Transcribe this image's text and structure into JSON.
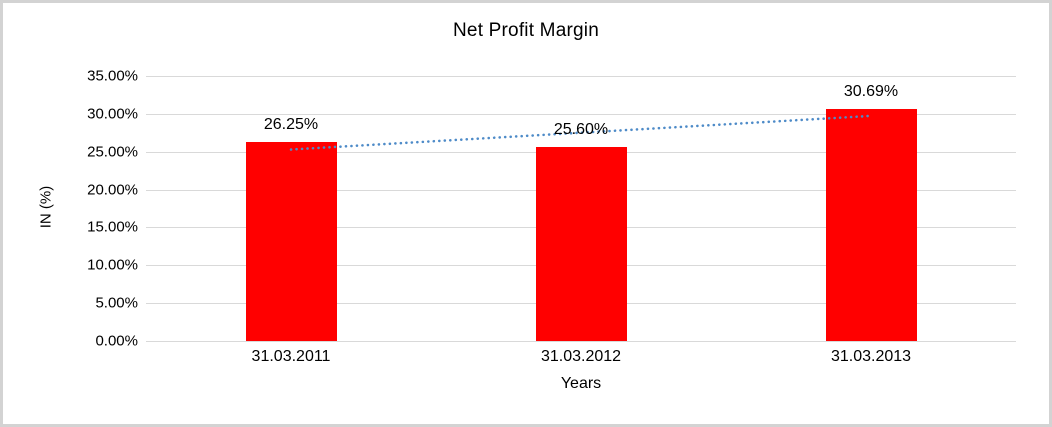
{
  "chart_data": {
    "type": "bar",
    "title": "Net Profit Margin",
    "xlabel": "Years",
    "ylabel": "IN (%)",
    "categories": [
      "31.03.2011",
      "31.03.2012",
      "31.03.2013"
    ],
    "values": [
      26.25,
      25.6,
      30.69
    ],
    "data_labels": [
      "26.25%",
      "25.60%",
      "30.69%"
    ],
    "ylim": [
      0,
      35
    ],
    "ytick_step": 5,
    "ytick_labels": [
      "35.00%",
      "30.00%",
      "25.00%",
      "20.00%",
      "15.00%",
      "10.00%",
      "5.00%",
      "0.00%"
    ],
    "grid": true,
    "legend": "none",
    "series_name": "Net Profit Margin",
    "trendline": {
      "type": "linear",
      "style": "dotted",
      "start_value": 25.29,
      "end_value": 29.73
    }
  },
  "colors": {
    "background": "#FFFFFF",
    "frame_border": "#D3D3D3",
    "gridline": "#D9D9D9",
    "text": "#000000",
    "bar": "#FF0000",
    "trendline": "#4E8BC8"
  }
}
